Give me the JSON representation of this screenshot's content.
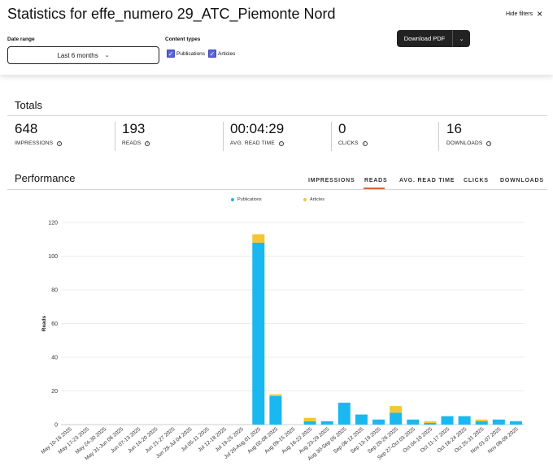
{
  "header": {
    "title": "Statistics for effe_numero 29_ATC_Piemonte Nord",
    "hide_filters": "Hide filters"
  },
  "filters": {
    "date_range_label": "Date range",
    "date_range_value": "Last 6 months",
    "content_types_label": "Content types",
    "content_types": [
      {
        "label": "Publications",
        "checked": true
      },
      {
        "label": "Articles",
        "checked": true
      }
    ],
    "download_label": "Download PDF"
  },
  "totals": {
    "title": "Totals",
    "metrics": [
      {
        "value": "648",
        "label": "IMPRESSIONS"
      },
      {
        "value": "193",
        "label": "READS"
      },
      {
        "value": "00:04:29",
        "label": "AVG. READ TIME"
      },
      {
        "value": "0",
        "label": "CLICKS"
      },
      {
        "value": "16",
        "label": "DOWNLOADS"
      }
    ]
  },
  "performance": {
    "title": "Performance",
    "tabs": [
      "IMPRESSIONS",
      "READS",
      "AVG. READ TIME",
      "CLICKS",
      "DOWNLOADS"
    ],
    "active_tab": "READS"
  },
  "colors": {
    "publications": "#1ab8f0",
    "articles": "#f5c631",
    "active_tab": "#e0603a"
  },
  "chart_data": {
    "type": "bar",
    "stacked": true,
    "ylabel": "Reads",
    "xlabel": "",
    "ylim": [
      0,
      120
    ],
    "yticks": [
      0,
      20,
      40,
      60,
      80,
      100,
      120
    ],
    "grid": true,
    "legend": "top",
    "categories": [
      "May 10-16 2025",
      "May 17-23 2025",
      "May 24-30 2025",
      "May 31-Jun 06 2025",
      "Jun 07-13 2025",
      "Jun 14-20 2025",
      "Jun 21-27 2025",
      "Jun 28-Jul 04 2025",
      "Jul 05-11 2025",
      "Jul 12-18 2025",
      "Jul 19-25 2025",
      "Jul 26-Aug 01 2025",
      "Aug 02-08 2025",
      "Aug 09-15 2025",
      "Aug 16-22 2025",
      "Aug 23-29 2025",
      "Aug 30-Sep 05 2025",
      "Sep 06-12 2025",
      "Sep 13-19 2025",
      "Sep 20-26 2025",
      "Sep 27-Oct 03 2025",
      "Oct 04-10 2025",
      "Oct 11-17 2025",
      "Oct 18-24 2025",
      "Oct 25-31 2025",
      "Nov 01-07 2025",
      "Nov 08-09 2025"
    ],
    "series": [
      {
        "name": "Publications",
        "values": [
          0,
          0,
          0,
          0,
          0,
          0,
          0,
          0,
          0,
          0,
          0,
          108,
          17,
          0,
          2,
          2,
          13,
          6,
          3,
          7,
          3,
          1,
          5,
          5,
          2,
          3,
          2
        ]
      },
      {
        "name": "Articles",
        "values": [
          0,
          0,
          0,
          0,
          0,
          0,
          0,
          0,
          0,
          0,
          0,
          5,
          1,
          0,
          2,
          0,
          0,
          0,
          0,
          4,
          0,
          1,
          0,
          0,
          1,
          0,
          0
        ]
      }
    ]
  }
}
